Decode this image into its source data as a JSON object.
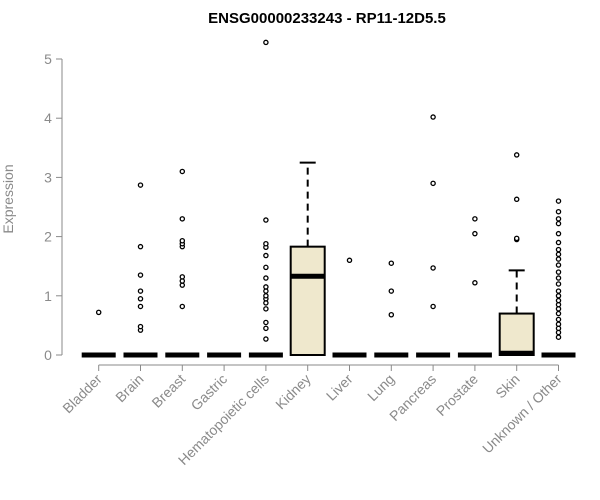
{
  "chart_data": {
    "type": "boxplot",
    "title": "ENSG00000233243 - RP11-12D5.5",
    "xlabel": "",
    "ylabel": "Expression",
    "ylim": [
      0,
      5.3
    ],
    "yticks": [
      0,
      1,
      2,
      3,
      4,
      5
    ],
    "grid": false,
    "colors": {
      "box_fill": "#efe8cd",
      "stroke": "#000000",
      "axis": "#8a8a8a"
    },
    "categories": [
      "Bladder",
      "Brain",
      "Breast",
      "Gastric",
      "Hematopoietic cells",
      "Kidney",
      "Liver",
      "Lung",
      "Pancreas",
      "Prostate",
      "Skin",
      "Unknown / Other"
    ],
    "boxes": [
      {
        "category": "Bladder",
        "q1": 0,
        "median": 0,
        "q3": 0,
        "whisker_low": 0,
        "whisker_high": 0,
        "outliers": [
          0.72
        ]
      },
      {
        "category": "Brain",
        "q1": 0,
        "median": 0,
        "q3": 0,
        "whisker_low": 0,
        "whisker_high": 0,
        "outliers": [
          0.42,
          0.48,
          0.82,
          0.95,
          1.08,
          1.35,
          1.83,
          2.87
        ]
      },
      {
        "category": "Breast",
        "q1": 0,
        "median": 0,
        "q3": 0,
        "whisker_low": 0,
        "whisker_high": 0,
        "outliers": [
          0.82,
          1.18,
          1.25,
          1.32,
          1.83,
          1.88,
          1.93,
          2.3,
          3.1
        ]
      },
      {
        "category": "Gastric",
        "q1": 0,
        "median": 0,
        "q3": 0,
        "whisker_low": 0,
        "whisker_high": 0,
        "outliers": []
      },
      {
        "category": "Hematopoietic cells",
        "q1": 0,
        "median": 0,
        "q3": 0,
        "whisker_low": 0,
        "whisker_high": 0,
        "outliers": [
          0.27,
          0.45,
          0.55,
          0.78,
          0.88,
          0.95,
          1.0,
          1.08,
          1.15,
          1.3,
          1.48,
          1.68,
          1.82,
          1.88,
          2.28,
          5.28
        ]
      },
      {
        "category": "Kidney",
        "q1": 0,
        "median": 1.33,
        "q3": 1.83,
        "whisker_low": 0,
        "whisker_high": 3.25,
        "outliers": []
      },
      {
        "category": "Liver",
        "q1": 0,
        "median": 0,
        "q3": 0,
        "whisker_low": 0,
        "whisker_high": 0,
        "outliers": [
          1.6
        ]
      },
      {
        "category": "Lung",
        "q1": 0,
        "median": 0,
        "q3": 0,
        "whisker_low": 0,
        "whisker_high": 0,
        "outliers": [
          0.68,
          1.08,
          1.55
        ]
      },
      {
        "category": "Pancreas",
        "q1": 0,
        "median": 0,
        "q3": 0,
        "whisker_low": 0,
        "whisker_high": 0,
        "outliers": [
          0.82,
          1.47,
          2.9,
          4.02
        ]
      },
      {
        "category": "Prostate",
        "q1": 0,
        "median": 0,
        "q3": 0,
        "whisker_low": 0,
        "whisker_high": 0,
        "outliers": [
          1.22,
          2.05,
          2.3
        ]
      },
      {
        "category": "Skin",
        "q1": 0,
        "median": 0.03,
        "q3": 0.7,
        "whisker_low": 0,
        "whisker_high": 1.43,
        "outliers": [
          1.95,
          1.97,
          2.63,
          3.38
        ]
      },
      {
        "category": "Unknown / Other",
        "q1": 0,
        "median": 0,
        "q3": 0,
        "whisker_low": 0,
        "whisker_high": 0,
        "outliers": [
          0.3,
          0.38,
          0.45,
          0.52,
          0.6,
          0.7,
          0.78,
          0.85,
          0.92,
          1.0,
          1.08,
          1.2,
          1.3,
          1.4,
          1.52,
          1.62,
          1.7,
          1.78,
          1.9,
          2.05,
          2.22,
          2.3,
          2.42,
          2.6
        ]
      }
    ]
  }
}
